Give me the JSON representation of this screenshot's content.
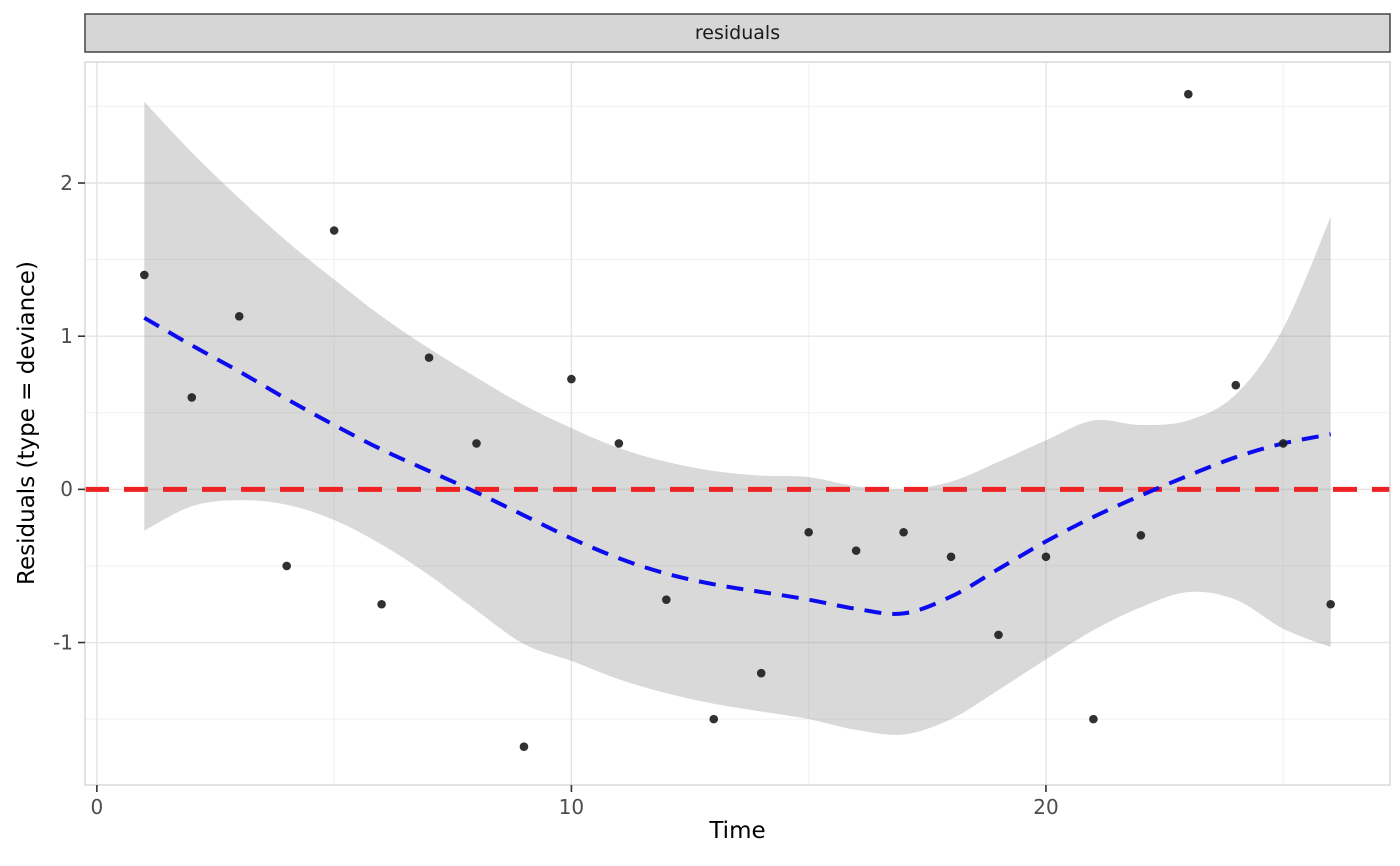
{
  "facet": {
    "label": "residuals"
  },
  "axes": {
    "x_title": "Time",
    "y_title": "Residuals (type = deviance)",
    "x_tick_labels": [
      "0",
      "10",
      "20"
    ],
    "y_tick_labels": [
      "-1",
      "0",
      "1",
      "2"
    ]
  },
  "colors": {
    "strip_fill": "#d6d6d6",
    "strip_border": "#4f4f4f",
    "panel_border": "#d9d9d9",
    "grid_major": "#e4e4e4",
    "grid_minor": "#f1f1f1",
    "ribbon": "rgba(140,140,140,0.33)",
    "smooth": "#0b0bee",
    "hline": "#ee2222",
    "point": "#1f1f1f",
    "tick_mark": "#333333",
    "tick_label": "#4d4d4d"
  },
  "chart_data": {
    "type": "scatter",
    "title": "residuals",
    "xlabel": "Time",
    "ylabel": "Residuals (type = deviance)",
    "xlim": [
      -0.25,
      27.25
    ],
    "ylim": [
      -1.93,
      2.79
    ],
    "x_major_ticks": [
      0,
      10,
      20
    ],
    "x_minor_ticks": [
      5,
      15,
      25
    ],
    "y_major_ticks": [
      -1,
      0,
      1,
      2
    ],
    "y_minor_ticks": [
      -1.5,
      -0.5,
      0.5,
      1.5,
      2.5
    ],
    "grid": true,
    "legend": "none",
    "points": {
      "x": [
        1,
        2,
        3,
        4,
        5,
        6,
        7,
        8,
        9,
        10,
        11,
        12,
        13,
        14,
        15,
        16,
        17,
        18,
        19,
        20,
        21,
        22,
        23,
        24,
        25,
        26
      ],
      "y": [
        1.4,
        0.6,
        1.13,
        -0.5,
        1.69,
        -0.75,
        0.86,
        0.3,
        -1.68,
        0.72,
        0.3,
        -0.72,
        -1.5,
        -1.2,
        -0.28,
        -0.4,
        -0.28,
        -0.44,
        -0.95,
        -0.44,
        -1.5,
        -0.3,
        2.58,
        0.68,
        0.3,
        -0.75
      ]
    },
    "smooth_line": {
      "style": "dashed",
      "x": [
        1,
        2,
        3,
        4,
        5,
        6,
        7,
        8,
        9,
        10,
        11,
        12,
        13,
        14,
        15,
        16,
        17,
        18,
        19,
        20,
        21,
        22,
        23,
        24,
        25,
        26
      ],
      "y": [
        1.12,
        0.94,
        0.77,
        0.59,
        0.42,
        0.26,
        0.12,
        -0.02,
        -0.17,
        -0.32,
        -0.45,
        -0.55,
        -0.62,
        -0.67,
        -0.72,
        -0.78,
        -0.81,
        -0.7,
        -0.52,
        -0.34,
        -0.18,
        -0.04,
        0.09,
        0.21,
        0.3,
        0.36
      ]
    },
    "ribbon": {
      "x": [
        1,
        2,
        3,
        4,
        5,
        6,
        7,
        8,
        9,
        10,
        11,
        12,
        13,
        14,
        15,
        16,
        17,
        18,
        19,
        20,
        21,
        22,
        23,
        24,
        25,
        26
      ],
      "upper": [
        2.53,
        2.2,
        1.9,
        1.62,
        1.37,
        1.13,
        0.92,
        0.73,
        0.55,
        0.4,
        0.27,
        0.18,
        0.12,
        0.09,
        0.08,
        0.02,
        0.0,
        0.05,
        0.18,
        0.32,
        0.45,
        0.42,
        0.45,
        0.62,
        1.05,
        1.78
      ],
      "lower": [
        -0.27,
        -0.11,
        -0.07,
        -0.1,
        -0.2,
        -0.36,
        -0.56,
        -0.79,
        -1.01,
        -1.12,
        -1.24,
        -1.33,
        -1.4,
        -1.45,
        -1.5,
        -1.57,
        -1.6,
        -1.5,
        -1.31,
        -1.11,
        -0.92,
        -0.77,
        -0.67,
        -0.72,
        -0.91,
        -1.03
      ]
    },
    "hline": {
      "y": 0,
      "style": "dashed"
    }
  }
}
